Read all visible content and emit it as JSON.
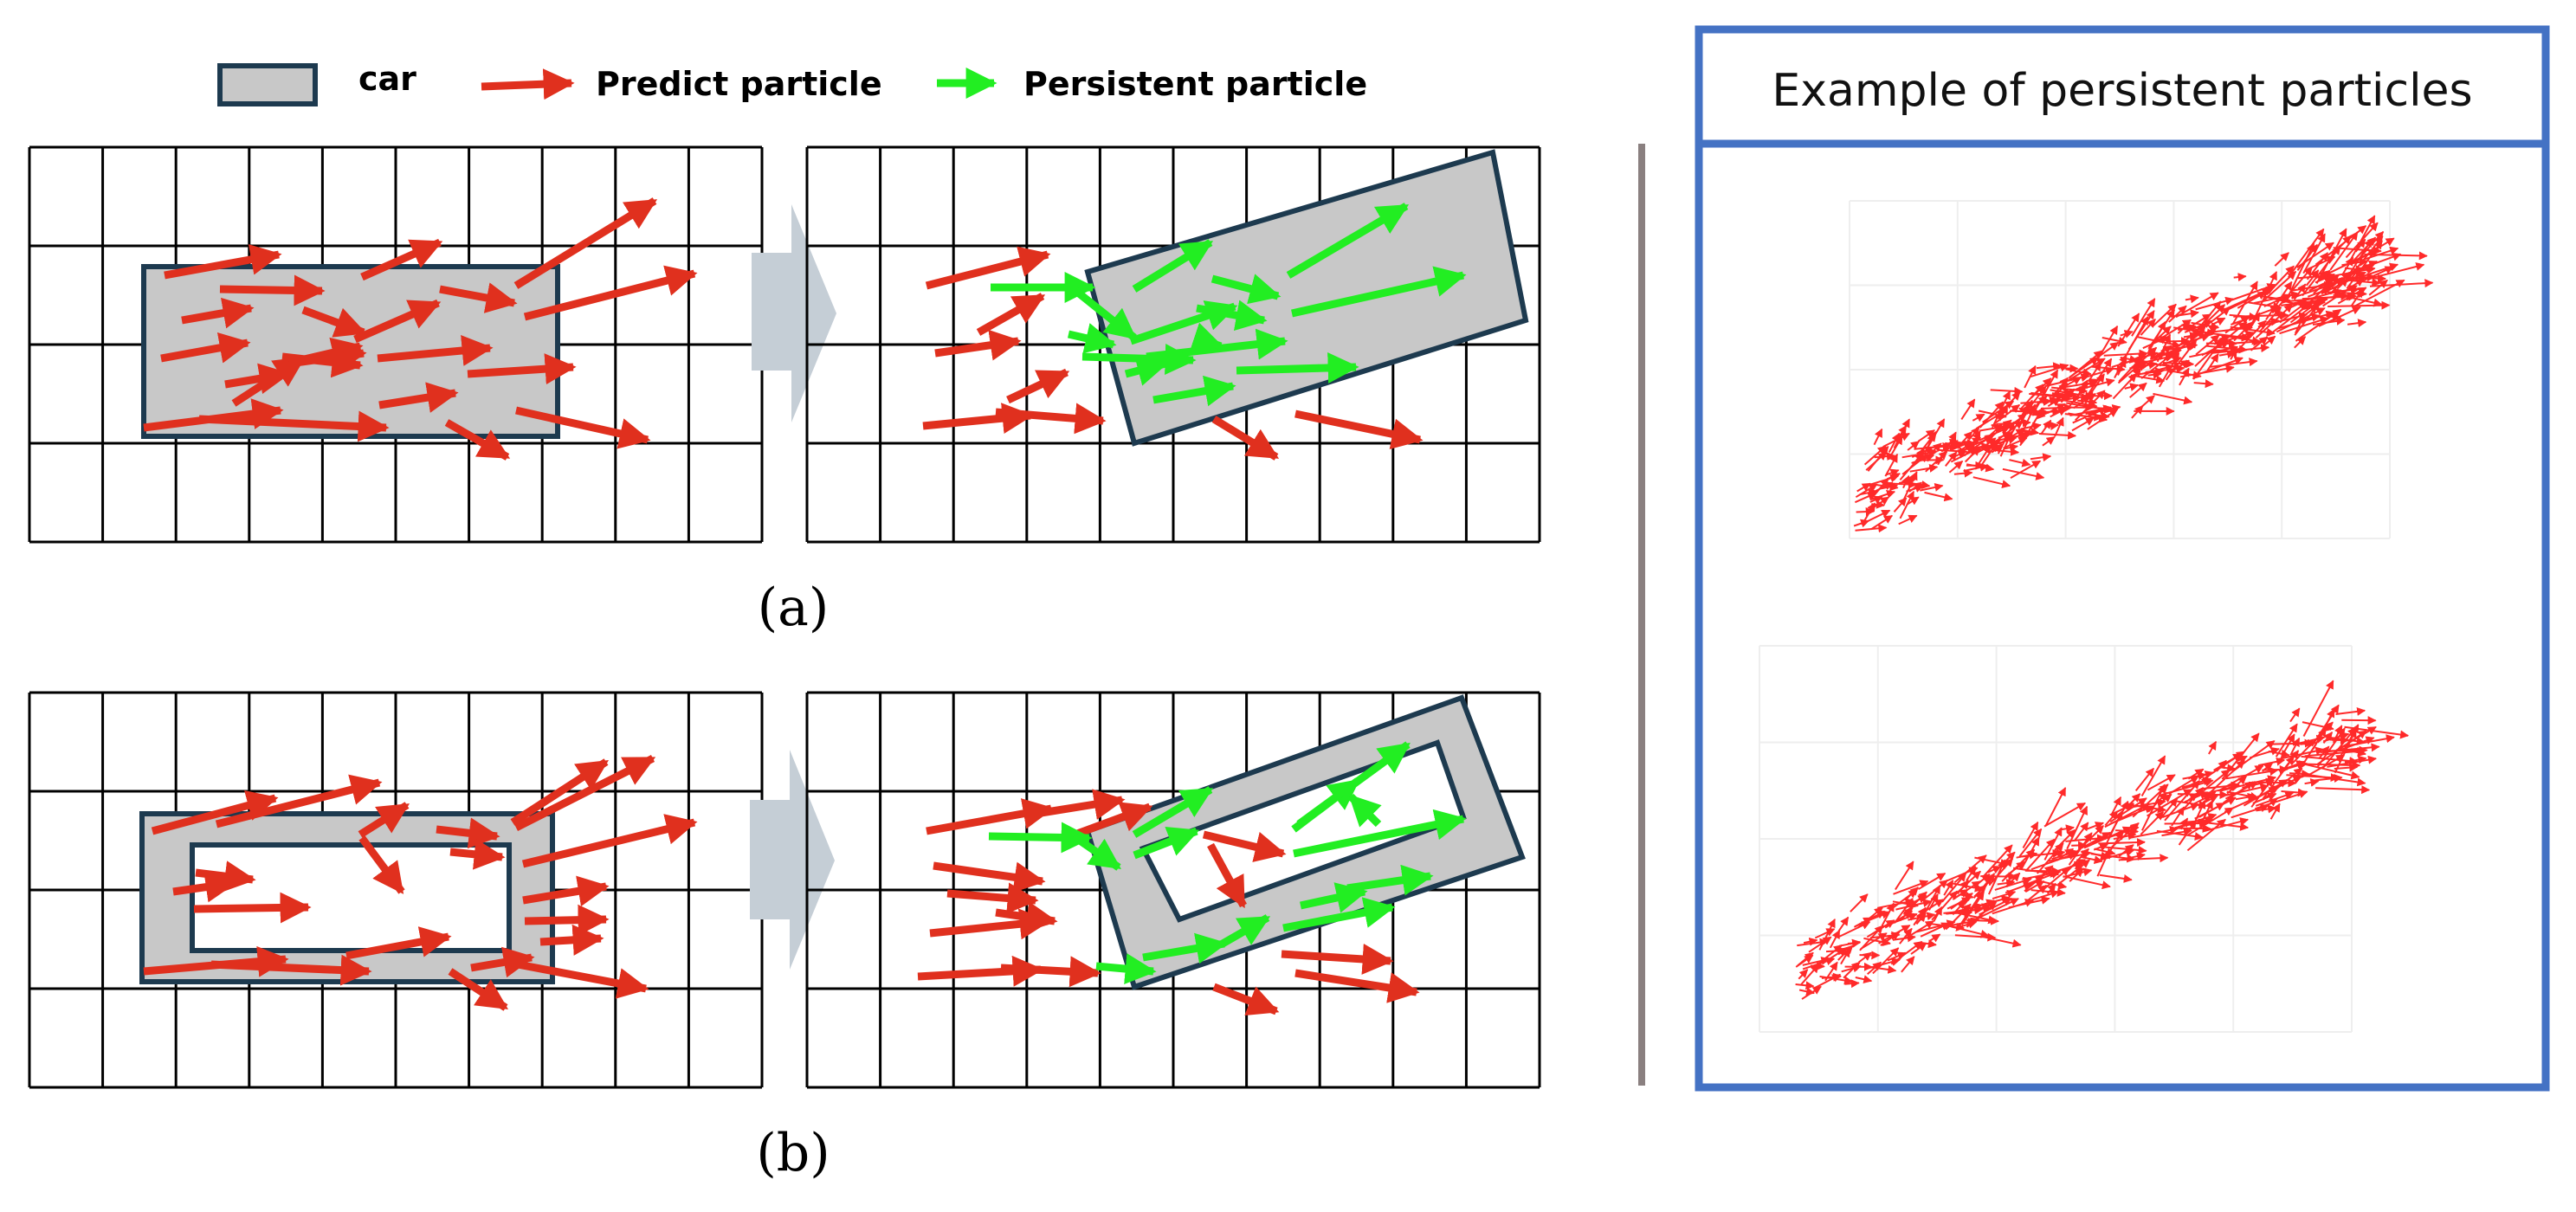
{
  "legend": {
    "car_label": "car",
    "predict_label": "Predict particle",
    "persistent_label": "Persistent particle"
  },
  "captions": {
    "a": "(a)",
    "b": "(b)"
  },
  "example_panel": {
    "title": "Example of persistent particles"
  },
  "colors": {
    "predict_arrow": "#e0301e",
    "persistent_arrow": "#22ee22",
    "car_fill": "#c8c8c8",
    "car_border": "#1d3a4f",
    "panel_border": "#4472c4",
    "divider": "#8a8080",
    "transition_arrow": "#c5ced6",
    "grid_line": "#000000",
    "example_arrow": "#ff2a2a"
  },
  "icons": {
    "transition": "right-block-arrow-icon",
    "predict": "red-arrow-icon",
    "persistent": "green-arrow-icon"
  }
}
